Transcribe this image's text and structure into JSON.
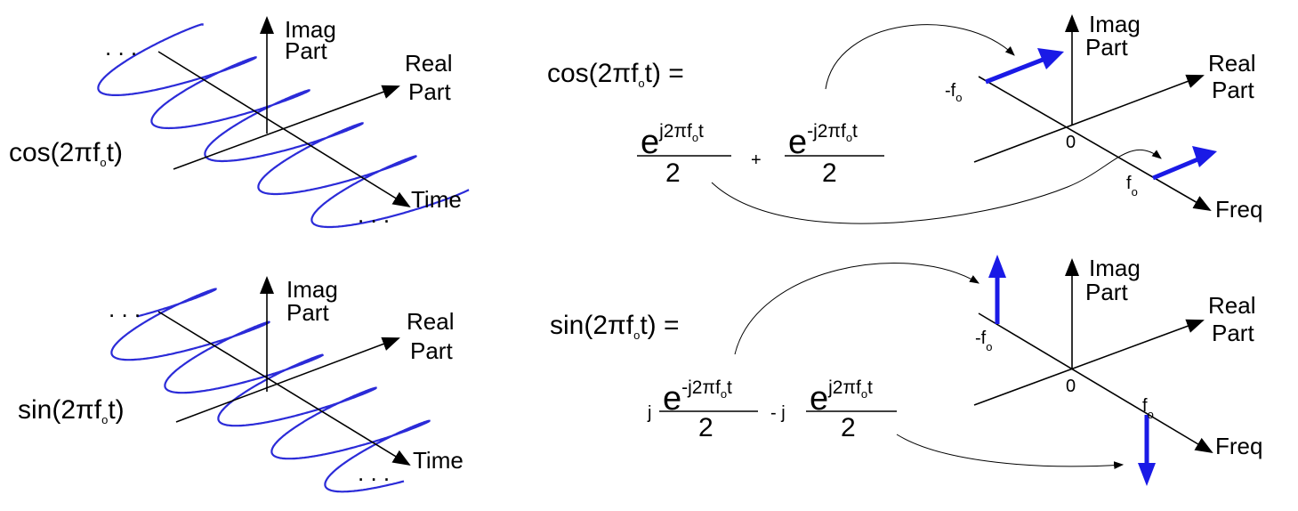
{
  "colors": {
    "phasor": "#1a1ae6",
    "helix": "#2b2bd8",
    "ink": "#000000"
  },
  "axes": {
    "imag": [
      "Imag",
      "Part"
    ],
    "real": [
      "Real",
      "Part"
    ],
    "time": "Time",
    "freq": "Freq",
    "zero": "0",
    "ellipsis": ". . ."
  },
  "top": {
    "signal": {
      "prefix": "cos(2",
      "pi": "π",
      "f": "f",
      "sub": "o",
      "suffix": "t)"
    },
    "equation_lhs": {
      "prefix": "cos(2",
      "pi": "π",
      "f": "f",
      "sub": "o",
      "suffix": "t) ="
    },
    "term1": {
      "coef": "",
      "base": "e",
      "exponent": "j2πf",
      "exp_sub": "o",
      "exp_tail": "t",
      "denominator": "2"
    },
    "operator": "+",
    "term2": {
      "coef": "",
      "base": "e",
      "exponent": "-j2πf",
      "exp_sub": "o",
      "exp_tail": "t",
      "denominator": "2"
    },
    "neg_freq": {
      "label": "-f",
      "sub": "o"
    },
    "pos_freq": {
      "label": "f",
      "sub": "o"
    }
  },
  "bottom": {
    "signal": {
      "prefix": "sin(2",
      "pi": "π",
      "f": "f",
      "sub": "o",
      "suffix": "t)"
    },
    "equation_lhs": {
      "prefix": "sin(2",
      "pi": "π",
      "f": "f",
      "sub": "o",
      "suffix": "t) ="
    },
    "term1": {
      "coef": "j",
      "base": "e",
      "exponent": "-j2πf",
      "exp_sub": "o",
      "exp_tail": "t",
      "denominator": "2"
    },
    "operator": "- j",
    "term2": {
      "base": "e",
      "exponent": "j2πf",
      "exp_sub": "o",
      "exp_tail": "t",
      "denominator": "2"
    },
    "neg_freq": {
      "label": "-f",
      "sub": "o"
    },
    "pos_freq": {
      "label": "f",
      "sub": "o"
    }
  }
}
